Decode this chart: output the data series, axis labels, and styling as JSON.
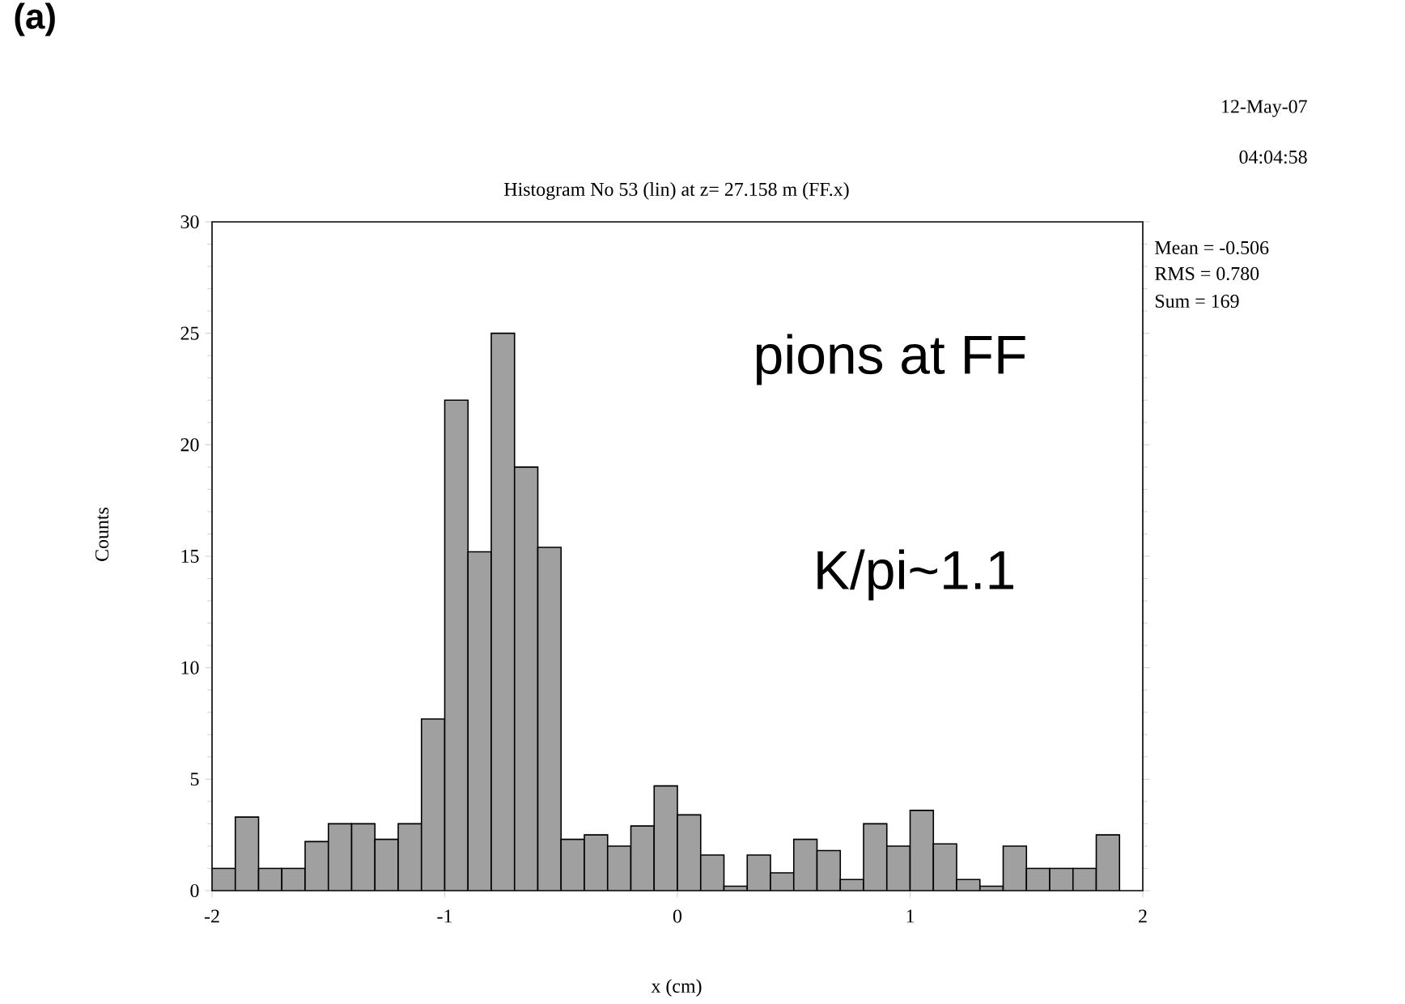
{
  "chart_data": {
    "type": "histogram",
    "title": "Histogram No 53 (lin) at z= 27.158 m (FF.x)",
    "xlabel": "x (cm)",
    "ylabel": "Counts",
    "bins": [
      -2,
      -1.9,
      -1.8,
      -1.7,
      -1.6,
      -1.5,
      -1.4,
      -1.3,
      -1.2,
      -1.1,
      -1,
      -0.9,
      -0.8,
      -0.7,
      -0.6,
      -0.5,
      -0.4,
      -0.3,
      -0.2,
      -0.1,
      0,
      0.1,
      0.2,
      0.3,
      0.4,
      0.5,
      0.6,
      0.7,
      0.8,
      0.9,
      1,
      1.1,
      1.2,
      1.3,
      1.4,
      1.5,
      1.6,
      1.7,
      1.8,
      1.9,
      2
    ],
    "values": [
      1,
      3.3,
      1,
      1,
      2.2,
      3,
      3,
      2.3,
      3,
      7.7,
      22,
      15.2,
      25,
      19,
      15.4,
      2.3,
      2.5,
      2,
      2.9,
      4.7,
      3.4,
      1.6,
      0.2,
      1.6,
      0.8,
      2.3,
      1.8,
      0.5,
      3,
      2,
      3.6,
      2.1,
      0.5,
      0.2,
      2,
      1,
      1,
      1,
      2.5,
      null
    ],
    "color": "#a0a0a0",
    "xlim": [
      -2,
      2
    ],
    "ylim": [
      0,
      30
    ],
    "xticks": [
      -2,
      -1,
      0,
      1,
      2
    ],
    "yticks": [
      0,
      5,
      10,
      15,
      20,
      25,
      30
    ],
    "grid": false,
    "annotations": [
      "(a)",
      "12-May-07",
      "04:04:58",
      "Mean = -0.506",
      "RMS =  0.780",
      "Sum =    169",
      "pions at FF",
      "K/pi~1.1"
    ]
  }
}
